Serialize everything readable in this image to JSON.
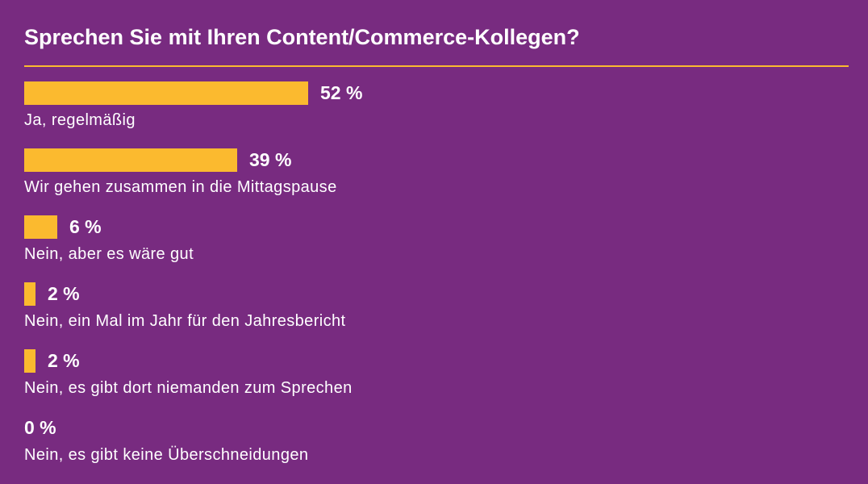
{
  "title": "Sprechen Sie mit Ihren Content/Commerce-Kollegen?",
  "colors": {
    "background": "#782b80",
    "bar": "#fbba2f",
    "divider": "#fbba2f",
    "text": "#ffffff"
  },
  "chart_data": {
    "type": "bar",
    "orientation": "horizontal",
    "title": "Sprechen Sie mit Ihren Content/Commerce-Kollegen?",
    "categories": [
      "Ja, regelmäßig",
      "Wir gehen zusammen in die Mittagspause",
      "Nein, aber es wäre gut",
      "Nein, ein Mal im Jahr für den Jahresbericht",
      "Nein, es gibt dort niemanden zum Sprechen",
      "Nein, es gibt keine Überschneidungen"
    ],
    "values": [
      52,
      39,
      6,
      2,
      2,
      0
    ],
    "value_labels": [
      "52 %",
      "39 %",
      "6 %",
      "2 %",
      "2 %",
      "0 %"
    ],
    "unit": "%",
    "xlim": [
      0,
      100
    ],
    "grid": false,
    "legend": false
  }
}
